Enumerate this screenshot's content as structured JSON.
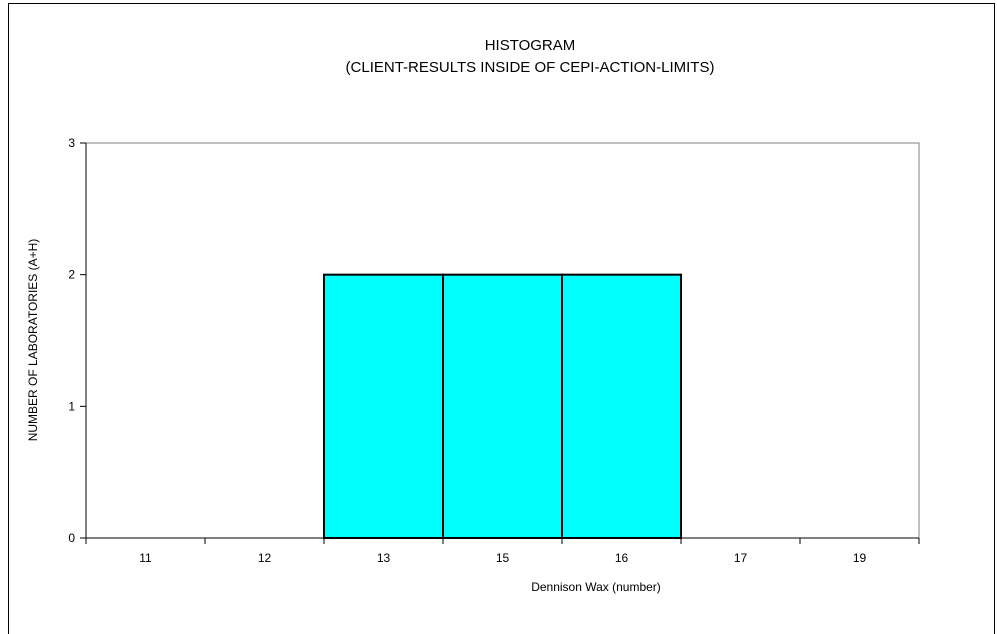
{
  "chart_data": {
    "type": "bar",
    "title": "HISTOGRAM",
    "subtitle": "(CLIENT-RESULTS INSIDE OF CEPI-ACTION-LIMITS)",
    "xlabel": "Dennison Wax (number)",
    "ylabel": "NUMBER OF LABORATORIES (A+H)",
    "categories": [
      "11",
      "12",
      "13",
      "15",
      "16",
      "17",
      "19"
    ],
    "values": [
      0,
      0,
      2,
      2,
      2,
      0,
      0
    ],
    "ylim": [
      0,
      3
    ],
    "yticks": [
      "0",
      "1",
      "2",
      "3"
    ],
    "bar_color": "#00FFFF",
    "bar_edge_color": "#000000",
    "grid": false,
    "legend": "none"
  }
}
